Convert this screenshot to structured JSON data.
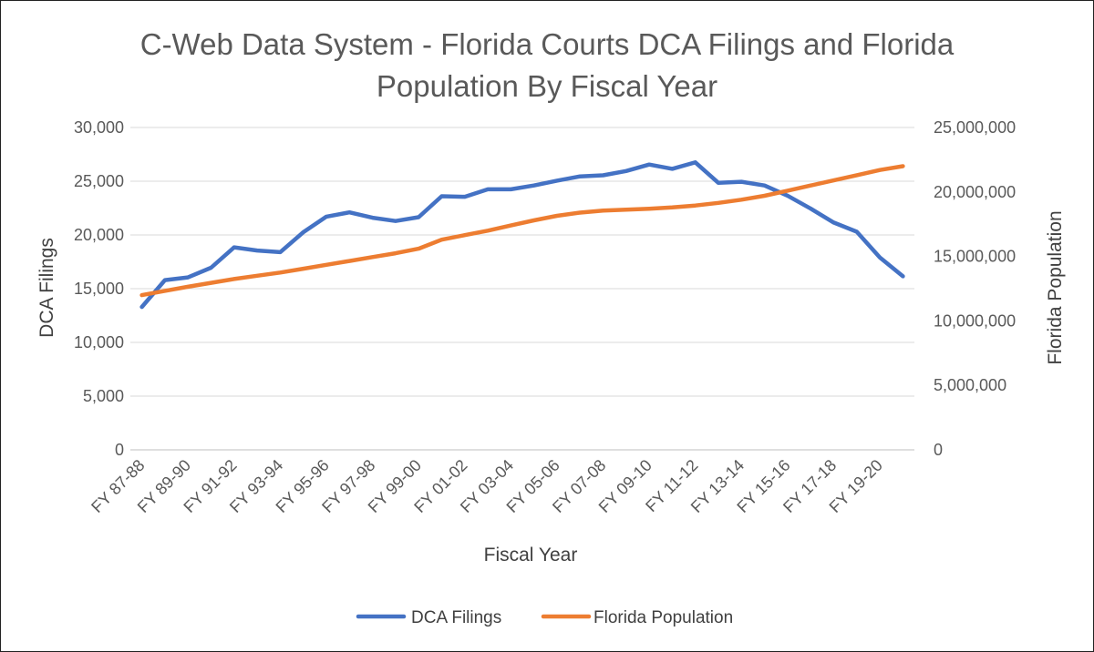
{
  "chart_data": {
    "type": "line",
    "title": "C-Web Data System - Florida Courts DCA Filings and Florida Population By Fiscal Year",
    "xlabel": "Fiscal Year",
    "ylabel": "DCA Filings",
    "y2label": "Florida Population",
    "ylim": [
      0,
      30000
    ],
    "y2lim": [
      0,
      25000000
    ],
    "yticks": [
      "0",
      "5,000",
      "10,000",
      "15,000",
      "20,000",
      "25,000",
      "30,000"
    ],
    "y2ticks": [
      "0",
      "5,000,000",
      "10,000,000",
      "15,000,000",
      "20,000,000",
      "25,000,000"
    ],
    "grid": true,
    "legend": "bottom",
    "categories": [
      "FY 87-88",
      "FY 88-89",
      "FY 89-90",
      "FY 90-91",
      "FY 91-92",
      "FY 92-93",
      "FY 93-94",
      "FY 94-95",
      "FY 95-96",
      "FY 96-97",
      "FY 97-98",
      "FY 98-99",
      "FY 99-00",
      "FY 00-01",
      "FY 01-02",
      "FY 02-03",
      "FY 03-04",
      "FY 04-05",
      "FY 05-06",
      "FY 06-07",
      "FY 07-08",
      "FY 08-09",
      "FY 09-10",
      "FY 10-11",
      "FY 11-12",
      "FY 12-13",
      "FY 13-14",
      "FY 14-15",
      "FY 15-16",
      "FY 16-17",
      "FY 17-18",
      "FY 18-19",
      "FY 19-20",
      "FY 20-21"
    ],
    "shown_tick_labels": [
      "FY 87-88",
      "FY 89-90",
      "FY 91-92",
      "FY 93-94",
      "FY 95-96",
      "FY 97-98",
      "FY 99-00",
      "FY 01-02",
      "FY 03-04",
      "FY 05-06",
      "FY 07-08",
      "FY 09-10",
      "FY 11-12",
      "FY 13-14",
      "FY 15-16",
      "FY 17-18",
      "FY 19-20"
    ],
    "series": [
      {
        "name": "DCA Filings",
        "axis": "left",
        "color": "#4472C4",
        "values": [
          13300,
          15800,
          16050,
          16950,
          18850,
          18550,
          18400,
          20250,
          21700,
          22100,
          21600,
          21300,
          21650,
          23600,
          23550,
          24250,
          24250,
          24600,
          25050,
          25450,
          25550,
          25950,
          26550,
          26150,
          26750,
          24850,
          24950,
          24600,
          23650,
          22450,
          21150,
          20300,
          17900,
          16150
        ]
      },
      {
        "name": "Florida Population",
        "axis": "right",
        "color": "#ED7D31",
        "values": [
          12000000,
          12330000,
          12650000,
          12950000,
          13250000,
          13500000,
          13750000,
          14050000,
          14350000,
          14650000,
          14950000,
          15250000,
          15600000,
          16300000,
          16650000,
          17000000,
          17400000,
          17800000,
          18150000,
          18400000,
          18550000,
          18620000,
          18700000,
          18800000,
          18950000,
          19150000,
          19400000,
          19700000,
          20100000,
          20500000,
          20900000,
          21300000,
          21700000,
          22000000
        ]
      }
    ]
  }
}
